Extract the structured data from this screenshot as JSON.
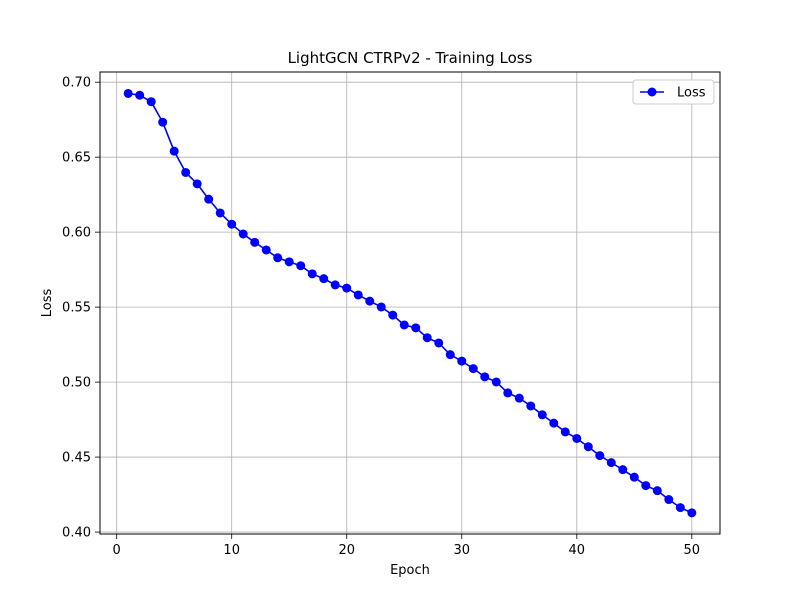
{
  "chart_data": {
    "type": "line",
    "title": "LightGCN CTRPv2 - Training Loss",
    "xlabel": "Epoch",
    "ylabel": "Loss",
    "xlim": [
      -1.45,
      52.45
    ],
    "ylim": [
      0.3987,
      0.7068
    ],
    "xticks": [
      0,
      10,
      20,
      30,
      40,
      50
    ],
    "yticks": [
      0.4,
      0.45,
      0.5,
      0.55,
      0.6,
      0.65,
      0.7
    ],
    "xtick_labels": [
      "0",
      "10",
      "20",
      "30",
      "40",
      "50"
    ],
    "ytick_labels": [
      "0.40",
      "0.45",
      "0.50",
      "0.55",
      "0.60",
      "0.65",
      "0.70"
    ],
    "grid": true,
    "legend_position": "top-right",
    "series": [
      {
        "name": "Loss",
        "color": "#0000ff",
        "marker": "circle",
        "x": [
          1,
          2,
          3,
          4,
          5,
          6,
          7,
          8,
          9,
          10,
          11,
          12,
          13,
          14,
          15,
          16,
          17,
          18,
          19,
          20,
          21,
          22,
          23,
          24,
          25,
          26,
          27,
          28,
          29,
          30,
          31,
          32,
          33,
          34,
          35,
          36,
          37,
          38,
          39,
          40,
          41,
          42,
          43,
          44,
          45,
          46,
          47,
          48,
          49,
          50
        ],
        "y": [
          0.6925,
          0.6913,
          0.687,
          0.6733,
          0.654,
          0.6398,
          0.6322,
          0.622,
          0.6128,
          0.6053,
          0.5988,
          0.5932,
          0.5881,
          0.5829,
          0.5802,
          0.5776,
          0.5722,
          0.569,
          0.5648,
          0.5627,
          0.5581,
          0.554,
          0.5501,
          0.5447,
          0.5381,
          0.5362,
          0.5296,
          0.5261,
          0.5183,
          0.514,
          0.509,
          0.5035,
          0.5001,
          0.4928,
          0.4893,
          0.4841,
          0.4782,
          0.4726,
          0.4668,
          0.4624,
          0.4569,
          0.451,
          0.4463,
          0.4416,
          0.4366,
          0.431,
          0.4276,
          0.4217,
          0.4163,
          0.4128
        ]
      }
    ]
  }
}
